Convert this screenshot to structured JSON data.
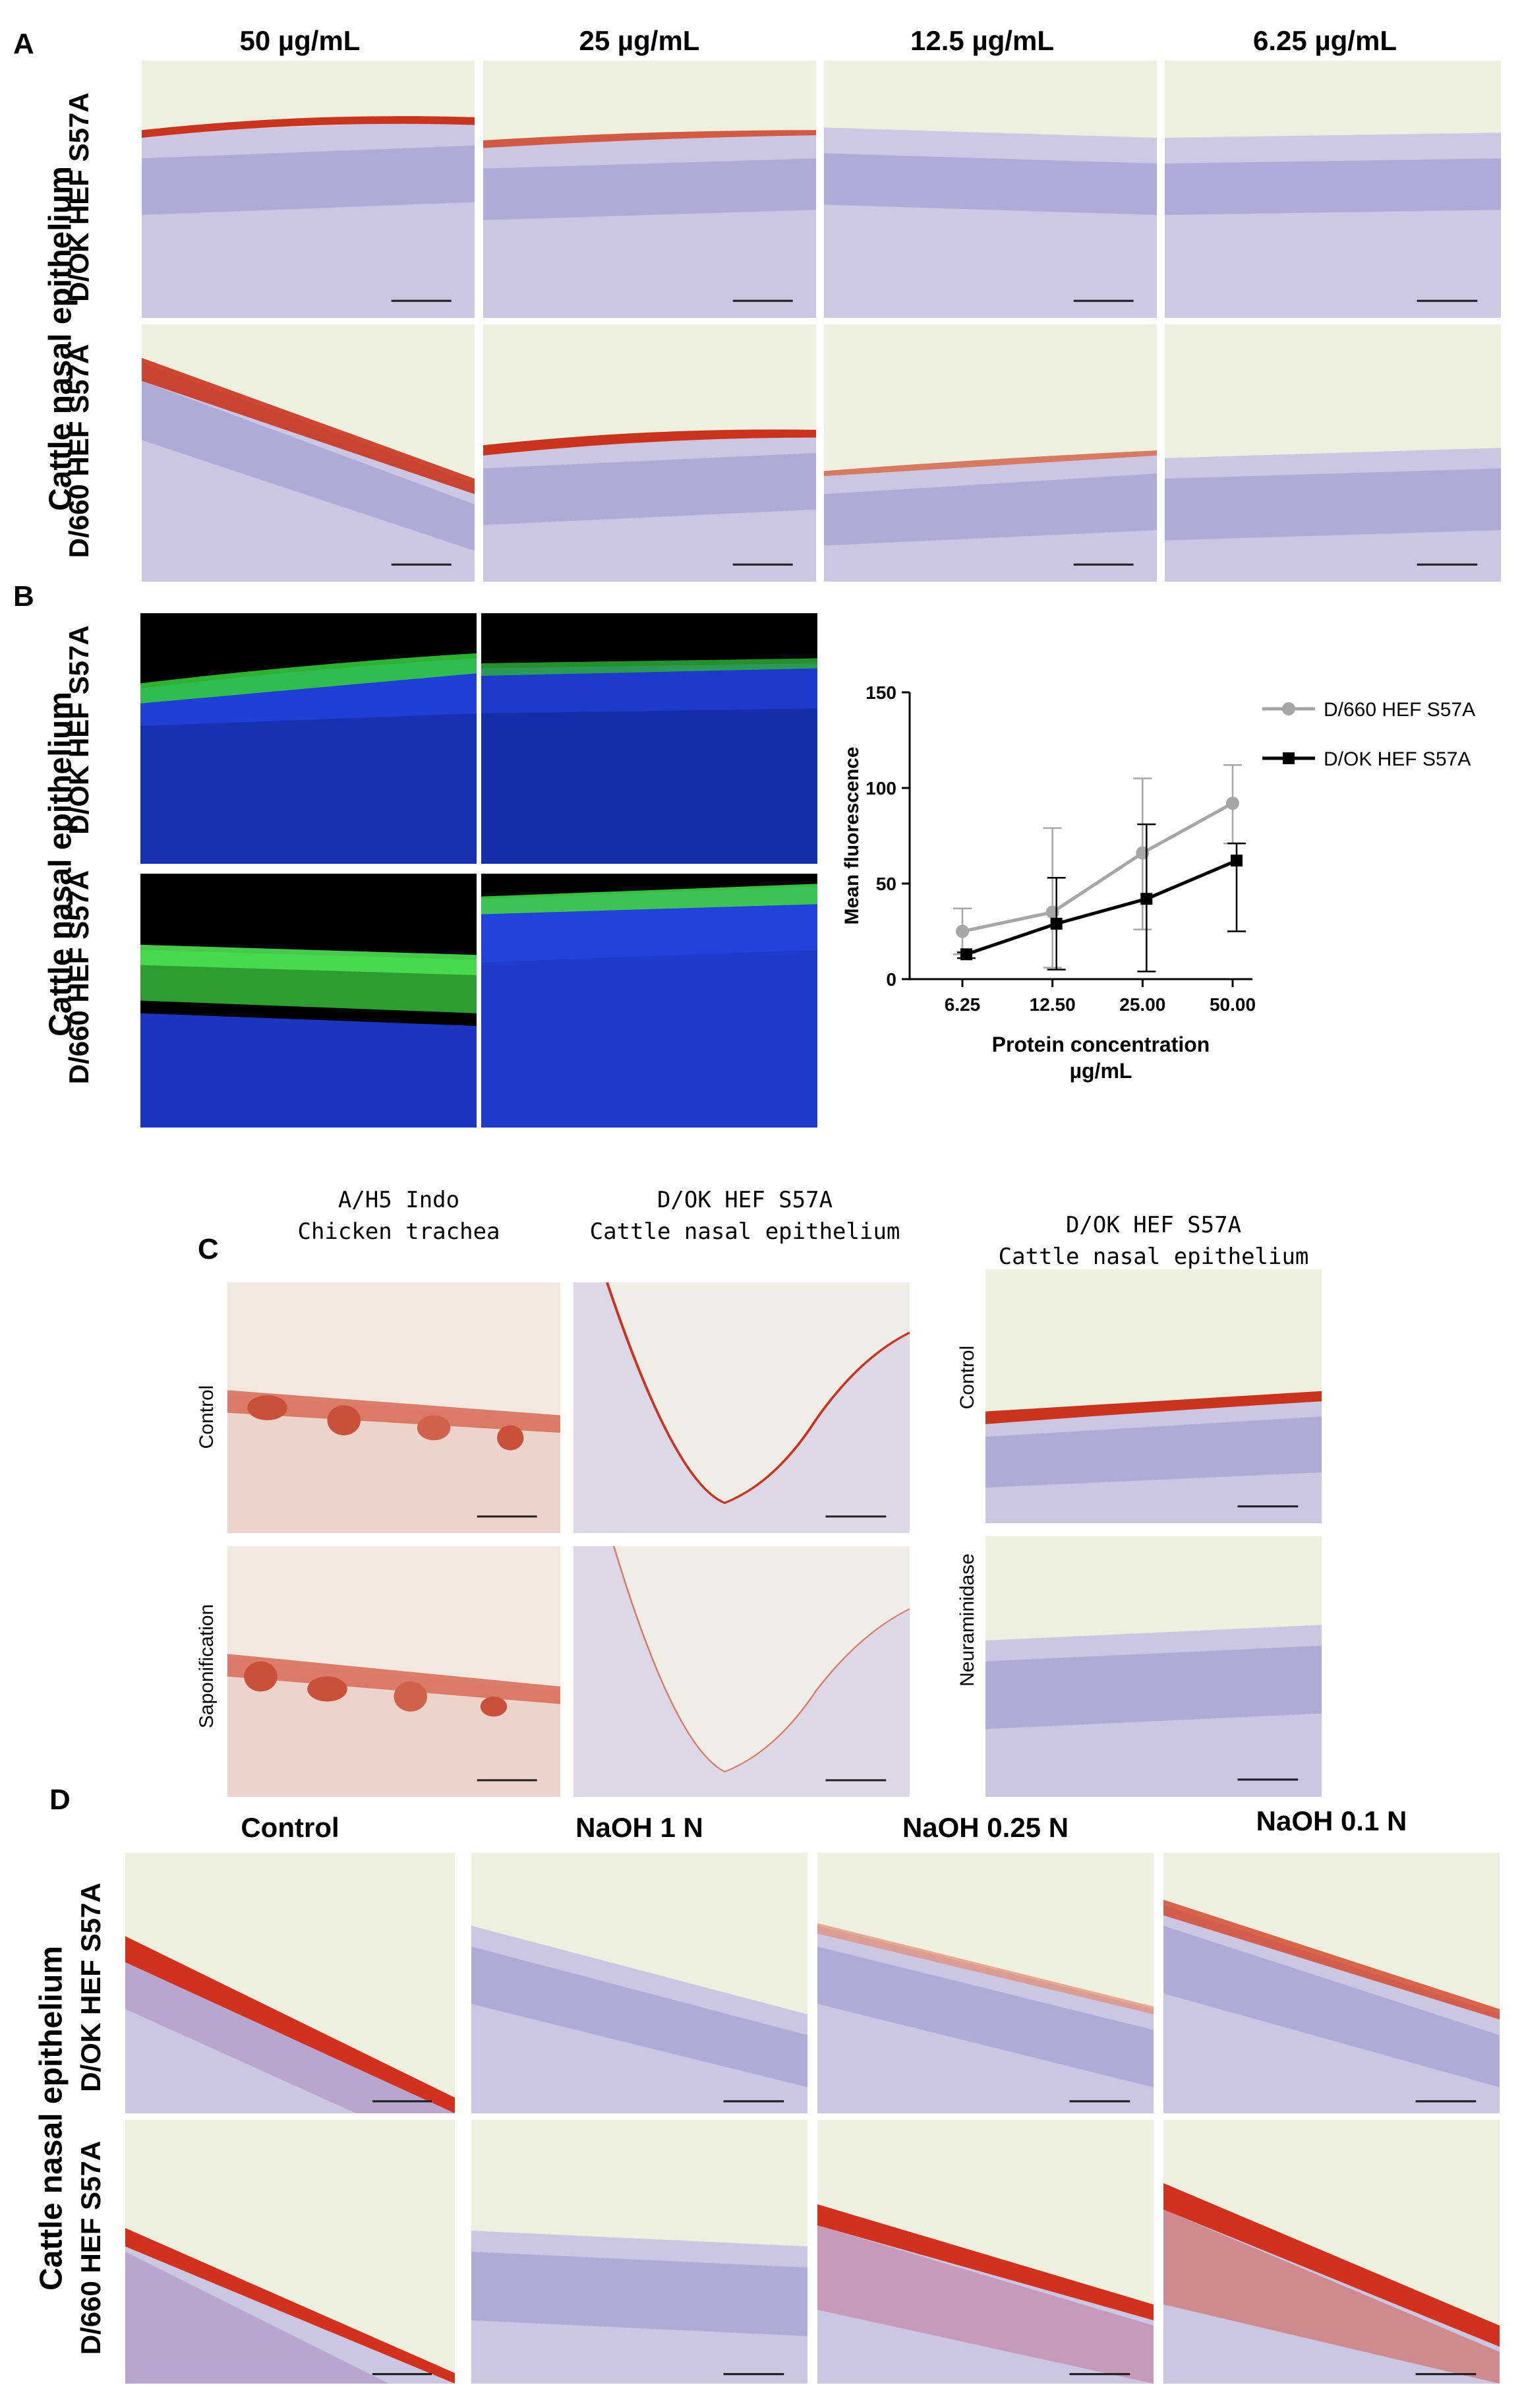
{
  "panels": {
    "A": {
      "letter": "A",
      "columns": [
        "50 µg/mL",
        "25 µg/mL",
        "12.5 µg/mL",
        "6.25 µg/mL"
      ],
      "side_label": "Cattle nasal epithelium",
      "rows": [
        "D/OK HEF S57A",
        "D/660 HEF S57A"
      ]
    },
    "B": {
      "letter": "B",
      "side_label": "Cattle nasal epithelium",
      "rows": [
        "D/OK HEF S57A",
        "D/660 HEF S57A"
      ]
    },
    "C": {
      "letter": "C",
      "col1_line1": "A/H5 Indo",
      "col1_line2": "Chicken trachea",
      "col2_line1": "D/OK HEF S57A",
      "col2_line2": "Cattle nasal epithelium",
      "col3_line1": "D/OK HEF S57A",
      "col3_line2": "Cattle nasal epithelium",
      "left_rows": [
        "Control",
        "Saponification"
      ],
      "right_rows": [
        "Control",
        "Neuraminidase"
      ]
    },
    "D": {
      "letter": "D",
      "columns": [
        "Control",
        "NaOH 1 N",
        "NaOH 0.25 N",
        "NaOH 0.1 N"
      ],
      "side_label": "Cattle nasal epithelium",
      "rows": [
        "D/OK HEF S57A",
        "D/660 HEF S57A"
      ]
    }
  },
  "chart_data": {
    "type": "line",
    "title": "",
    "xlabel": "Protein concentration",
    "xlabel_unit": "µg/mL",
    "ylabel": "Mean fluorescence",
    "categories": [
      "6.25",
      "12.50",
      "25.00",
      "50.00"
    ],
    "ylim": [
      0,
      150
    ],
    "yticks": [
      0,
      50,
      100,
      150
    ],
    "legend_position": "top-right",
    "grid": false,
    "series": [
      {
        "name": "D/660 HEF S57A",
        "color": "#a6a6a6",
        "marker": "circle",
        "values": [
          25,
          35,
          66,
          92
        ],
        "err_upper": [
          37,
          79,
          105,
          112
        ],
        "err_lower": [
          13,
          6,
          26,
          71
        ]
      },
      {
        "name": "D/OK HEF S57A",
        "color": "#000000",
        "marker": "square",
        "values": [
          13,
          29,
          42,
          62
        ],
        "err_upper": [
          14,
          53,
          81,
          71
        ],
        "err_lower": [
          11,
          5,
          4,
          25
        ]
      }
    ]
  }
}
